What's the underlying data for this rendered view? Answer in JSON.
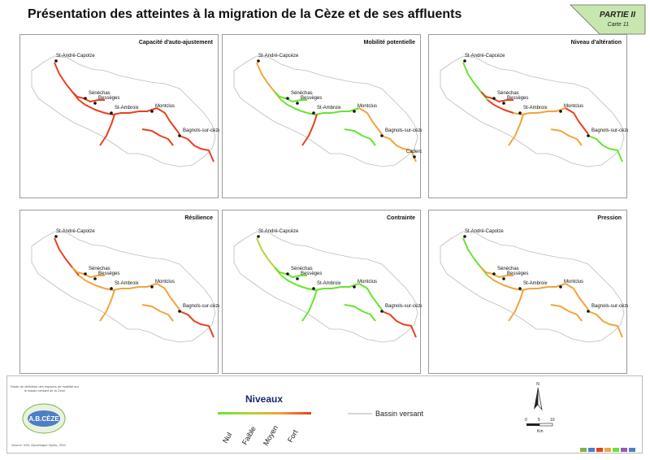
{
  "title": "Présentation des atteintes à la migration de la Cèze et de ses affluents",
  "partie": {
    "label": "PARTIE II",
    "carte": "Carte 11"
  },
  "colors": {
    "nul": "#66e52e",
    "faible": "#b5d334",
    "moyen": "#f2a43a",
    "fort": "#e8401e",
    "bassin": "#bdbdbd"
  },
  "panels": [
    {
      "title": "Capacité d'auto-ajustement",
      "towns": [
        "St-André-Capolze",
        "Sénéchas",
        "Bessèges",
        "St-Ambroix",
        "Montclus",
        "Bagnols-sur-cèze"
      ],
      "colors": [
        "fort",
        "fort",
        "fort",
        "fort",
        "fort",
        "fort",
        "fort",
        "fort"
      ]
    },
    {
      "title": "Mobilité potentielle",
      "towns": [
        "St-André-Capcèze",
        "Sénéchas",
        "Bessèges",
        "St-Ambroix",
        "Montclus",
        "Bagnols-sur-cèze",
        "Caderousse"
      ],
      "colors": [
        "moyen",
        "nul",
        "nul",
        "nul",
        "fort",
        "moyen",
        "moyen",
        "nul"
      ]
    },
    {
      "title": "Niveau d'altération",
      "towns": [
        "St-André-Capcèze",
        "Sénéchas",
        "Bessèges",
        "St-Ambroix",
        "Montclus",
        "Bagnols-sur-cèze"
      ],
      "colors": [
        "nul",
        "fort",
        "fort",
        "moyen",
        "moyen",
        "fort",
        "nul",
        "moyen"
      ]
    },
    {
      "title": "Résilience",
      "towns": [
        "St-André-Capolze",
        "Sénéchas",
        "Bessèges",
        "St-Ambroix",
        "Montclus",
        "Bagnols-sur-cèze"
      ],
      "colors": [
        "fort",
        "moyen",
        "moyen",
        "moyen",
        "moyen",
        "moyen",
        "fort",
        "moyen"
      ]
    },
    {
      "title": "Contrainte",
      "towns": [
        "St-André-Capcèze",
        "Sénéchas",
        "Bessèges",
        "St-Ambroix",
        "Montclus",
        "Bagnols-sur-cèze"
      ],
      "colors": [
        "faible",
        "nul",
        "nul",
        "nul",
        "nul",
        "nul",
        "fort",
        "nul"
      ]
    },
    {
      "title": "Pression",
      "towns": [
        "St-André-Capolze",
        "Sénéchas",
        "Bessèges",
        "St-Ambroix",
        "Montclus",
        "Bagnols-sur-cèze"
      ],
      "colors": [
        "nul",
        "moyen",
        "moyen",
        "moyen",
        "moyen",
        "moyen",
        "moyen",
        "moyen"
      ]
    }
  ],
  "legend": {
    "title": "Niveaux",
    "levels": [
      "Nul",
      "Faible",
      "Moyen",
      "Fort"
    ],
    "bassin": "Bassin versant",
    "scale": [
      "0",
      "5",
      "10",
      "Km"
    ],
    "north": "N"
  },
  "footer": {
    "note": "Etude de définition des espaces de mobilité sur le bassin versant de la Cèze",
    "logo": "A.B.CÈZE",
    "source": "Source: IGN, Dynamique Hydro, 2011"
  }
}
